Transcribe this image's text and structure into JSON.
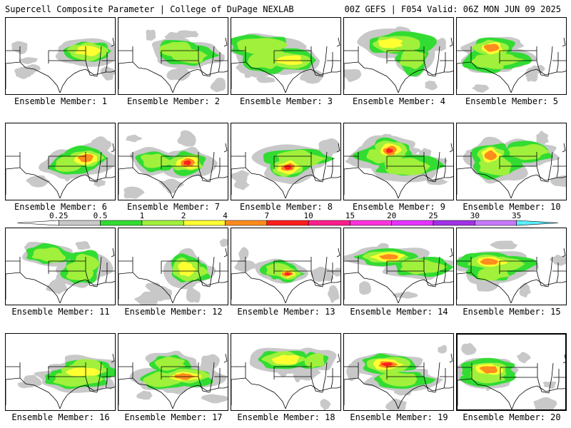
{
  "header": {
    "title": "Supercell Composite Parameter | College of DuPage NEXLAB",
    "run": "00Z GEFS | F054 Valid: 06Z MON JUN 09 2025"
  },
  "colorbar": {
    "levels": [
      "0.25",
      "0.5",
      "1",
      "2",
      "4",
      "7",
      "10",
      "15",
      "20",
      "25",
      "30",
      "35"
    ],
    "colors": [
      "#ffffff",
      "#c8c8c8",
      "#32dc32",
      "#a0f03c",
      "#ffff32",
      "#ff8c1e",
      "#ff1e1e",
      "#ff1e8c",
      "#ff32dc",
      "#e632ff",
      "#a032e6",
      "#c878ff",
      "#5af0ff"
    ]
  },
  "map_colors": {
    "border": "#000000",
    "coast": "#000000"
  },
  "panels": [
    {
      "label": "Ensemble Member: 1",
      "selected": false
    },
    {
      "label": "Ensemble Member: 2",
      "selected": false
    },
    {
      "label": "Ensemble Member: 3",
      "selected": false
    },
    {
      "label": "Ensemble Member: 4",
      "selected": false
    },
    {
      "label": "Ensemble Member: 5",
      "selected": false
    },
    {
      "label": "Ensemble Member: 6",
      "selected": false
    },
    {
      "label": "Ensemble Member: 7",
      "selected": false
    },
    {
      "label": "Ensemble Member: 8",
      "selected": false
    },
    {
      "label": "Ensemble Member: 9",
      "selected": false
    },
    {
      "label": "Ensemble Member: 10",
      "selected": false
    },
    {
      "label": "Ensemble Member: 11",
      "selected": false
    },
    {
      "label": "Ensemble Member: 12",
      "selected": false
    },
    {
      "label": "Ensemble Member: 13",
      "selected": false
    },
    {
      "label": "Ensemble Member: 14",
      "selected": false
    },
    {
      "label": "Ensemble Member: 15",
      "selected": false
    },
    {
      "label": "Ensemble Member: 16",
      "selected": false
    },
    {
      "label": "Ensemble Member: 17",
      "selected": false
    },
    {
      "label": "Ensemble Member: 18",
      "selected": false
    },
    {
      "label": "Ensemble Member: 19",
      "selected": false
    },
    {
      "label": "Ensemble Member: 20",
      "selected": true
    }
  ]
}
